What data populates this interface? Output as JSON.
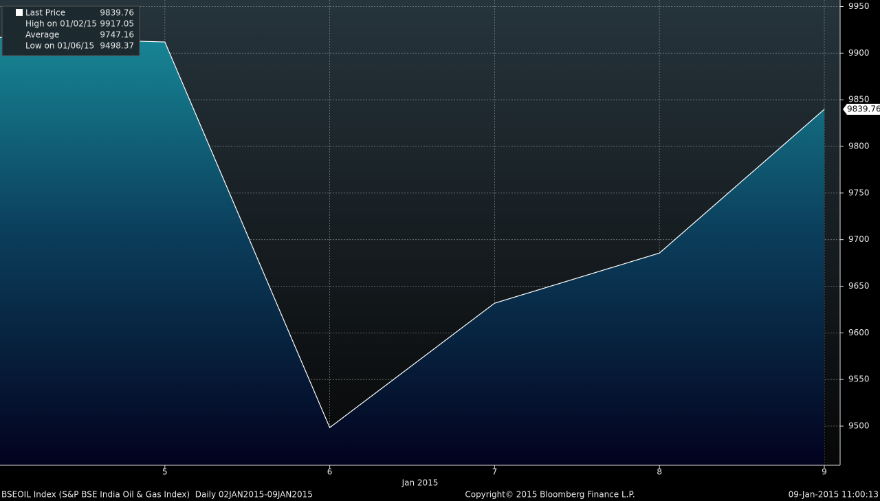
{
  "chart_data": {
    "type": "area",
    "categories": [
      null,
      "5",
      "6",
      "7",
      "8",
      "9"
    ],
    "x_label": "Jan 2015",
    "series": [
      {
        "name": "Last Price",
        "color": "#ffffff",
        "values": [
          9917.05,
          9912,
          9498.37,
          9631.8,
          9685.6,
          9839.76
        ]
      }
    ],
    "ylim": [
      9458,
      9957
    ],
    "yticks": [
      9500,
      9550,
      9600,
      9650,
      9700,
      9750,
      9800,
      9850,
      9900,
      9950
    ],
    "grid": true,
    "stats": [
      {
        "label": "High on 01/02/15",
        "value": 9917.05
      },
      {
        "label": "Average",
        "value": 9747.16
      },
      {
        "label": "Low on 01/06/15",
        "value": 9498.37
      }
    ],
    "footer": {
      "left": "BSEOIL Index (S&P BSE India Oil & Gas Index)  Daily 02JAN2015-09JAN2015",
      "center": "Copyright© 2015 Bloomberg Finance L.P.",
      "right": "09-Jan-2015 11:00:13"
    }
  }
}
